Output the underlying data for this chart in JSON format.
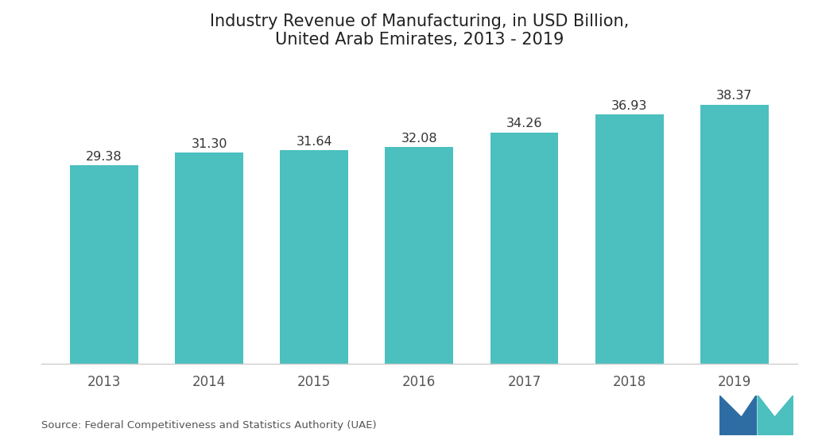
{
  "title": "Industry Revenue of Manufacturing, in USD Billion,\nUnited Arab Emirates, 2013 - 2019",
  "categories": [
    "2013",
    "2014",
    "2015",
    "2016",
    "2017",
    "2018",
    "2019"
  ],
  "values": [
    29.38,
    31.3,
    31.64,
    32.08,
    34.26,
    36.93,
    38.37
  ],
  "bar_color": "#4CBFBF",
  "background_color": "#ffffff",
  "title_fontsize": 15,
  "label_fontsize": 11.5,
  "tick_fontsize": 12,
  "source_text": "Source: Federal Competitiveness and Statistics Authority (UAE)",
  "ylim": [
    0,
    44
  ],
  "bar_width": 0.65
}
